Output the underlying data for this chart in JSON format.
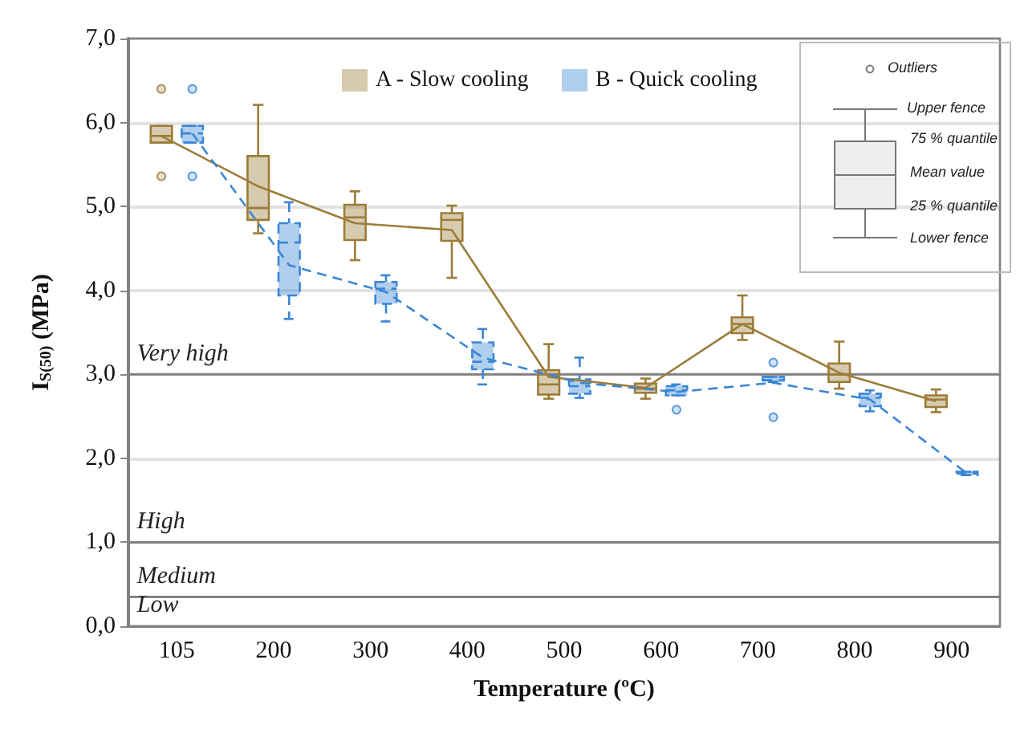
{
  "chart_data": {
    "type": "box",
    "xlabel": "Temperature (ºC)",
    "ylabel": "I$_{S(50)}$ (MPa)",
    "categories": [
      "105",
      "200",
      "300",
      "400",
      "500",
      "600",
      "700",
      "800",
      "900"
    ],
    "ylim": [
      0,
      7
    ],
    "yticks": [
      {
        "value": 0,
        "label": "0,0"
      },
      {
        "value": 1,
        "label": "1,0"
      },
      {
        "value": 2,
        "label": "2,0"
      },
      {
        "value": 3,
        "label": "3,0"
      },
      {
        "value": 4,
        "label": "4,0"
      },
      {
        "value": 5,
        "label": "5,0"
      },
      {
        "value": 6,
        "label": "6,0"
      },
      {
        "value": 7,
        "label": "7,0"
      }
    ],
    "grid": "y",
    "legend": "top",
    "marker": "none",
    "series": [
      {
        "name": "A - Slow cooling",
        "type": "box",
        "color": "#9c7c38",
        "boxes": [
          {
            "low": 5.76,
            "q1": 5.76,
            "median": 5.84,
            "q3": 5.96,
            "high": 5.96,
            "outliers": [
              6.4,
              5.36
            ]
          },
          {
            "low": 4.68,
            "q1": 4.84,
            "median": 4.98,
            "q3": 5.6,
            "high": 6.21
          },
          {
            "low": 4.36,
            "q1": 4.6,
            "median": 4.87,
            "q3": 5.02,
            "high": 5.18
          },
          {
            "low": 4.15,
            "q1": 4.59,
            "median": 4.84,
            "q3": 4.92,
            "high": 5.01
          },
          {
            "low": 2.71,
            "q1": 2.76,
            "median": 2.88,
            "q3": 3.05,
            "high": 3.36
          },
          {
            "low": 2.71,
            "q1": 2.78,
            "median": 2.83,
            "q3": 2.89,
            "high": 2.95
          },
          {
            "low": 3.41,
            "q1": 3.49,
            "median": 3.6,
            "q3": 3.68,
            "high": 3.94
          },
          {
            "low": 2.83,
            "q1": 2.91,
            "median": 3.0,
            "q3": 3.13,
            "high": 3.39
          },
          {
            "low": 2.55,
            "q1": 2.61,
            "median": 2.7,
            "q3": 2.75,
            "high": 2.82
          }
        ]
      },
      {
        "name": "B - Quick cooling",
        "type": "box",
        "color": "#3a86d6",
        "line_style": "dashed",
        "boxes": [
          {
            "low": 5.76,
            "q1": 5.76,
            "median": 5.87,
            "q3": 5.96,
            "high": 5.96,
            "outliers": [
              6.4,
              5.36
            ]
          },
          {
            "low": 3.66,
            "q1": 3.94,
            "median": 4.57,
            "q3": 4.8,
            "high": 5.05
          },
          {
            "low": 3.63,
            "q1": 3.84,
            "median": 4.02,
            "q3": 4.1,
            "high": 4.18
          },
          {
            "low": 2.88,
            "q1": 3.06,
            "median": 3.15,
            "q3": 3.38,
            "high": 3.54
          },
          {
            "low": 2.72,
            "q1": 2.77,
            "median": 2.86,
            "q3": 2.94,
            "high": 3.2
          },
          {
            "low": 2.75,
            "q1": 2.75,
            "median": 2.81,
            "q3": 2.86,
            "high": 2.88,
            "outliers": [
              2.58
            ]
          },
          {
            "low": 2.91,
            "q1": 2.91,
            "median": 2.93,
            "q3": 2.97,
            "high": 2.97,
            "outliers": [
              3.14,
              2.49
            ]
          },
          {
            "low": 2.56,
            "q1": 2.62,
            "median": 2.72,
            "q3": 2.77,
            "high": 2.81
          },
          {
            "low": 1.8,
            "q1": 1.8,
            "median": 1.82,
            "q3": 1.84,
            "high": 1.84
          }
        ]
      },
      {
        "type": "line",
        "color": "#9c7c38",
        "line_style": "solid",
        "values": [
          5.84,
          5.24,
          4.8,
          4.72,
          2.97,
          2.84,
          3.6,
          3.02,
          2.68
        ]
      },
      {
        "type": "line",
        "color": "#3a86d6",
        "line_style": "dashed",
        "values": [
          5.87,
          4.3,
          3.98,
          3.2,
          2.9,
          2.79,
          2.9,
          2.7,
          1.82
        ]
      }
    ],
    "bands": [
      {
        "axis": "y",
        "from": 3,
        "to": 7,
        "label": "Very high"
      },
      {
        "axis": "y",
        "from": 1,
        "to": 3,
        "label": "High"
      },
      {
        "axis": "y",
        "from": 0.35,
        "to": 1,
        "label": "Medium"
      },
      {
        "axis": "y",
        "from": 0,
        "to": 0.35,
        "label": "Low"
      }
    ],
    "annotations": [
      "Outliers",
      "Upper fence",
      "75 % quantile",
      "Mean value",
      "25 % quantile",
      "Lower fence"
    ]
  }
}
